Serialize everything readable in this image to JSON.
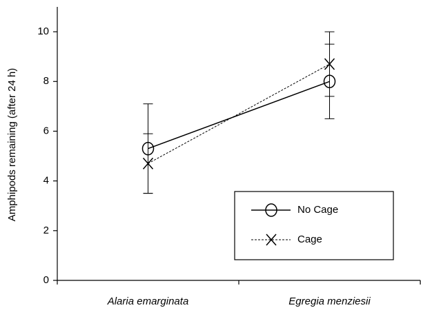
{
  "chart_data": {
    "type": "line",
    "y_label": "Amphipods remaining (after 24 h)",
    "categories": [
      "Alaria emarginata",
      "Egregia menziesii"
    ],
    "series": [
      {
        "name": "No Cage",
        "color": "#000000",
        "marker": "circle",
        "dash": false,
        "values": [
          5.3,
          8.0
        ],
        "errors": [
          1.8,
          1.5
        ]
      },
      {
        "name": "Cage",
        "color": "#000000",
        "marker": "x",
        "dash": true,
        "values": [
          4.7,
          8.7
        ],
        "errors": [
          1.2,
          1.3
        ]
      }
    ],
    "ylim": [
      0,
      11
    ],
    "yticks": [
      0,
      2,
      4,
      6,
      8,
      10
    ],
    "grid": false,
    "legend": "lower right"
  }
}
